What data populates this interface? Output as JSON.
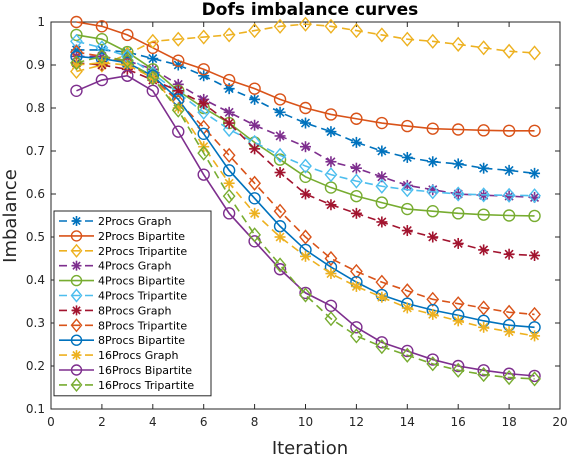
{
  "chart_data": {
    "type": "line",
    "title": "Dofs imbalance curves",
    "xlabel": "Iteration",
    "ylabel": "Imbalance",
    "xlim": [
      0,
      20
    ],
    "ylim": [
      0.1,
      1
    ],
    "xticks": [
      0,
      2,
      4,
      6,
      8,
      10,
      12,
      14,
      16,
      18,
      20
    ],
    "yticks": [
      0.1,
      0.2,
      0.3,
      0.4,
      0.5,
      0.6,
      0.7,
      0.8,
      0.9,
      1
    ],
    "ytick_labels": [
      "0.1",
      "0.2",
      "0.3",
      "0.4",
      "0.5",
      "0.6",
      "0.7",
      "0.8",
      "0.9",
      "1"
    ],
    "grid": false,
    "legend_position": "bottom-left",
    "x": [
      1,
      2,
      3,
      4,
      5,
      6,
      7,
      8,
      9,
      10,
      11,
      12,
      13,
      14,
      15,
      16,
      17,
      18,
      19
    ],
    "series": [
      {
        "name": "2Procs Graph",
        "color": "#0072BD",
        "dash": "dashed",
        "marker": "asterisk",
        "values": [
          0.935,
          0.935,
          0.93,
          0.915,
          0.9,
          0.875,
          0.845,
          0.82,
          0.79,
          0.765,
          0.745,
          0.72,
          0.7,
          0.685,
          0.675,
          0.67,
          0.66,
          0.655,
          0.648
        ]
      },
      {
        "name": "2Procs Bipartite",
        "color": "#D95319",
        "dash": "solid",
        "marker": "circle",
        "values": [
          1.0,
          0.99,
          0.97,
          0.94,
          0.91,
          0.89,
          0.865,
          0.845,
          0.82,
          0.8,
          0.785,
          0.775,
          0.765,
          0.758,
          0.752,
          0.75,
          0.748,
          0.747,
          0.747
        ]
      },
      {
        "name": "2Procs Tripartite",
        "color": "#EDB120",
        "dash": "dashed",
        "marker": "diamond",
        "values": [
          0.885,
          0.9,
          0.925,
          0.955,
          0.96,
          0.965,
          0.97,
          0.98,
          0.99,
          0.995,
          0.99,
          0.98,
          0.97,
          0.96,
          0.955,
          0.948,
          0.94,
          0.932,
          0.928
        ]
      },
      {
        "name": "4Procs Graph",
        "color": "#7E2F8E",
        "dash": "dashed",
        "marker": "asterisk",
        "values": [
          0.92,
          0.92,
          0.91,
          0.89,
          0.855,
          0.82,
          0.79,
          0.76,
          0.735,
          0.71,
          0.675,
          0.66,
          0.64,
          0.62,
          0.61,
          0.6,
          0.597,
          0.595,
          0.592
        ]
      },
      {
        "name": "4Procs Bipartite",
        "color": "#77AC30",
        "dash": "solid",
        "marker": "circle",
        "values": [
          0.97,
          0.96,
          0.93,
          0.89,
          0.84,
          0.8,
          0.765,
          0.72,
          0.68,
          0.64,
          0.615,
          0.595,
          0.58,
          0.565,
          0.56,
          0.555,
          0.552,
          0.55,
          0.549
        ]
      },
      {
        "name": "4Procs Tripartite",
        "color": "#4DBEEE",
        "dash": "dashed",
        "marker": "diamond",
        "values": [
          0.955,
          0.94,
          0.92,
          0.88,
          0.835,
          0.79,
          0.75,
          0.72,
          0.69,
          0.665,
          0.645,
          0.63,
          0.618,
          0.61,
          0.605,
          0.6,
          0.598,
          0.597,
          0.596
        ]
      },
      {
        "name": "8Procs Graph",
        "color": "#A2142F",
        "dash": "dashed",
        "marker": "asterisk",
        "values": [
          0.905,
          0.9,
          0.89,
          0.865,
          0.84,
          0.81,
          0.765,
          0.705,
          0.65,
          0.6,
          0.575,
          0.555,
          0.535,
          0.515,
          0.5,
          0.485,
          0.47,
          0.46,
          0.457
        ]
      },
      {
        "name": "8Procs Tripartite",
        "color": "#D95319",
        "dash": "dashed",
        "marker": "diamond",
        "values": [
          0.93,
          0.92,
          0.905,
          0.87,
          0.815,
          0.755,
          0.69,
          0.625,
          0.56,
          0.5,
          0.45,
          0.42,
          0.395,
          0.375,
          0.355,
          0.345,
          0.335,
          0.325,
          0.32
        ]
      },
      {
        "name": "8Procs Bipartite",
        "color": "#0072BD",
        "dash": "solid",
        "marker": "circle",
        "values": [
          0.92,
          0.915,
          0.905,
          0.875,
          0.82,
          0.74,
          0.655,
          0.59,
          0.525,
          0.47,
          0.43,
          0.395,
          0.365,
          0.345,
          0.33,
          0.318,
          0.305,
          0.295,
          0.29
        ]
      },
      {
        "name": "16Procs Graph",
        "color": "#EDB120",
        "dash": "dashed",
        "marker": "asterisk",
        "values": [
          0.9,
          0.905,
          0.9,
          0.87,
          0.8,
          0.71,
          0.625,
          0.555,
          0.5,
          0.455,
          0.415,
          0.385,
          0.36,
          0.335,
          0.32,
          0.305,
          0.29,
          0.28,
          0.27
        ]
      },
      {
        "name": "16Procs Bipartite",
        "color": "#7E2F8E",
        "dash": "solid",
        "marker": "circle",
        "values": [
          0.84,
          0.865,
          0.875,
          0.84,
          0.745,
          0.645,
          0.555,
          0.49,
          0.425,
          0.37,
          0.34,
          0.29,
          0.255,
          0.235,
          0.215,
          0.2,
          0.19,
          0.182,
          0.177
        ]
      },
      {
        "name": "16Procs Tripartite",
        "color": "#77AC30",
        "dash": "dashed",
        "marker": "diamond",
        "values": [
          0.905,
          0.92,
          0.91,
          0.87,
          0.795,
          0.695,
          0.595,
          0.505,
          0.435,
          0.365,
          0.31,
          0.27,
          0.245,
          0.225,
          0.205,
          0.19,
          0.18,
          0.173,
          0.17
        ]
      }
    ],
    "legend_order": [
      "2Procs Graph",
      "2Procs Bipartite",
      "2Procs Tripartite",
      "4Procs Graph",
      "4Procs Bipartite",
      "4Procs Tripartite",
      "8Procs Graph",
      "8Procs Tripartite",
      "8Procs Bipartite",
      "16Procs Graph",
      "16Procs Bipartite",
      "16Procs Tripartite"
    ]
  }
}
